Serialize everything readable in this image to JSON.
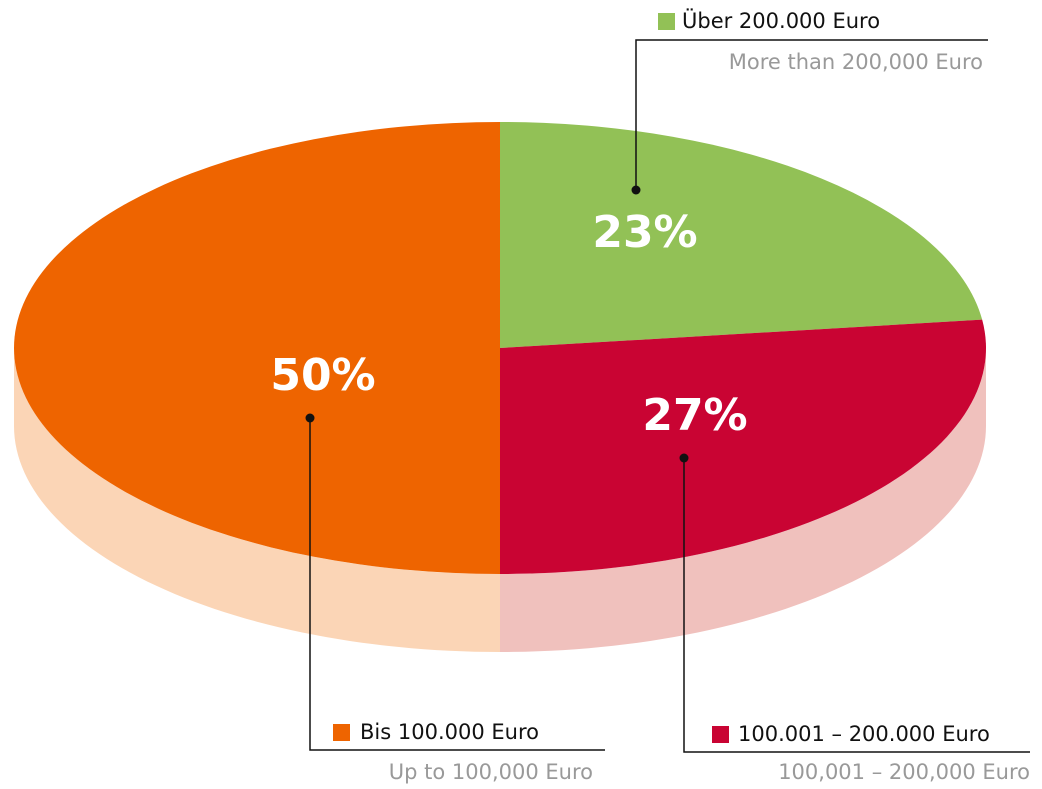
{
  "chart_data": {
    "type": "pie",
    "categories": [
      "Über 200.000 Euro",
      "100.001 – 200.000 Euro",
      "Bis 100.000 Euro"
    ],
    "subtitles": [
      "More than 200,000 Euro",
      "100,001 – 200,000 Euro",
      "Up to 100,000 Euro"
    ],
    "values": [
      23,
      27,
      50
    ],
    "value_labels": [
      "23%",
      "27%",
      "50%"
    ],
    "colors": [
      "#92c156",
      "#c90433",
      "#ee6400"
    ],
    "side_colors": [
      "#d6e9be",
      "#f0c1bd",
      "#fbd5b6"
    ]
  }
}
